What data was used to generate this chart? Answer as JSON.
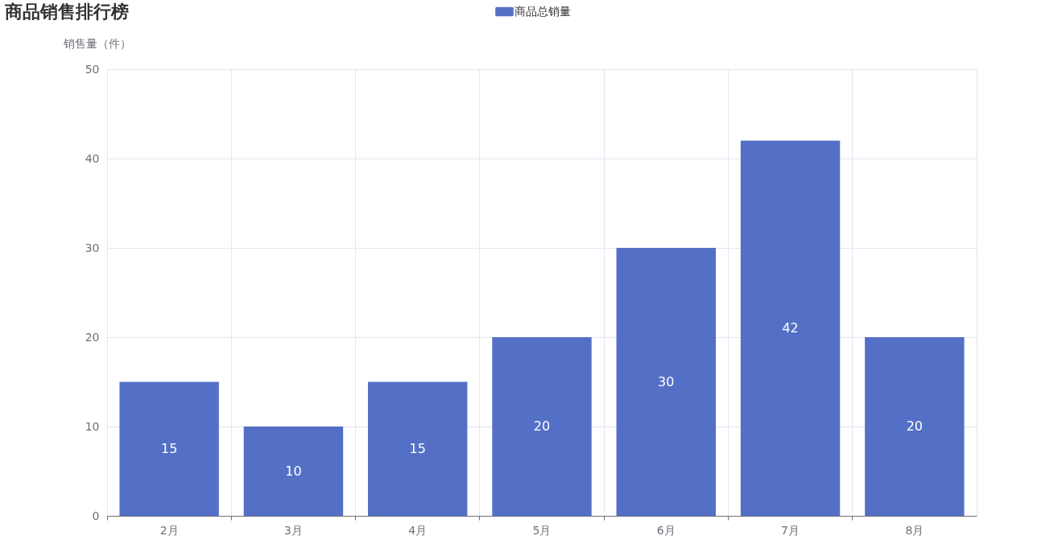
{
  "chart_data": {
    "type": "bar",
    "title": "商品销售排行榜",
    "ylabel": "销售量（件）",
    "categories": [
      "2月",
      "3月",
      "4月",
      "5月",
      "6月",
      "7月",
      "8月"
    ],
    "series": [
      {
        "name": "商品总销量",
        "color": "#5470c6",
        "values": [
          15,
          10,
          15,
          20,
          30,
          42,
          20
        ]
      }
    ],
    "ylim": [
      0,
      50
    ],
    "yticks": [
      0,
      10,
      20,
      30,
      40,
      50
    ],
    "grid": true,
    "legend": "top",
    "data_labels": true
  }
}
